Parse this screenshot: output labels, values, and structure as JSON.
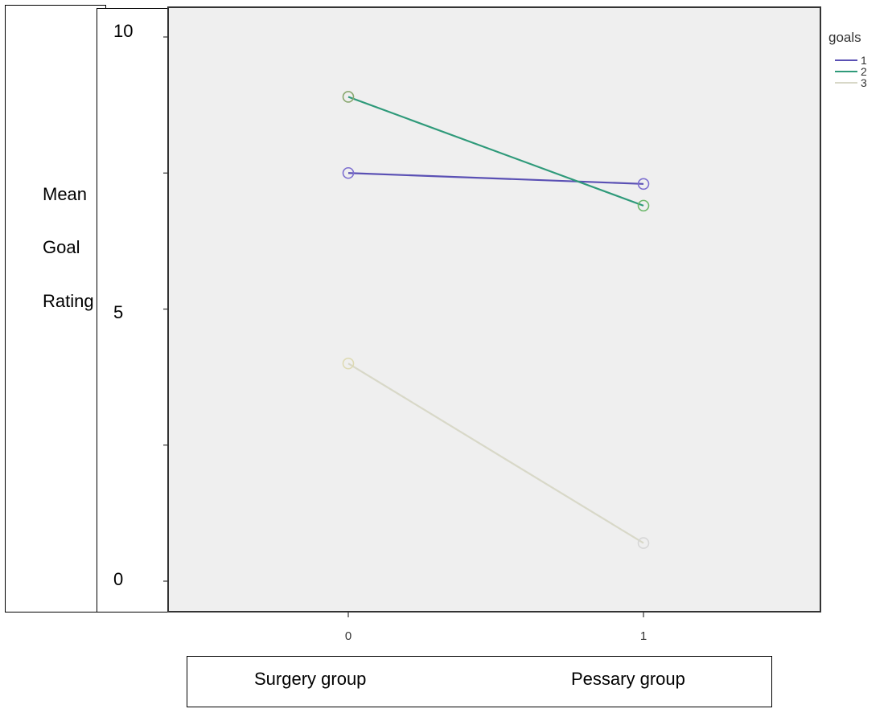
{
  "chart_data": {
    "type": "line",
    "ylabel_lines": [
      "Mean",
      "Goal",
      "Rating"
    ],
    "y_tick_labels": [
      "10",
      "5",
      "0"
    ],
    "x_tick_labels": [
      "0",
      "1"
    ],
    "x_group_labels": [
      "Surgery group",
      "Pessary group"
    ],
    "x": [
      0,
      1
    ],
    "ylim": [
      0,
      10
    ],
    "xlim": [
      -0.6,
      1.6
    ],
    "grid": false,
    "legend": {
      "title": "goals",
      "placement": "top-right"
    },
    "series": [
      {
        "name": "1",
        "values": [
          7.5,
          7.3
        ],
        "color": "#5a50b4"
      },
      {
        "name": "2",
        "values": [
          8.9,
          6.9
        ],
        "color": "#2f9a7a"
      },
      {
        "name": "3",
        "values": [
          4.0,
          0.7
        ],
        "color": "#d8d8c8"
      }
    ],
    "marker_colors": [
      [
        "#7d6fd0",
        "#7d6fd0"
      ],
      [
        "#8aa870",
        "#6cb86a"
      ],
      [
        "#dedab4",
        "#d6d6d6"
      ]
    ],
    "plot_background": "#efefef"
  }
}
